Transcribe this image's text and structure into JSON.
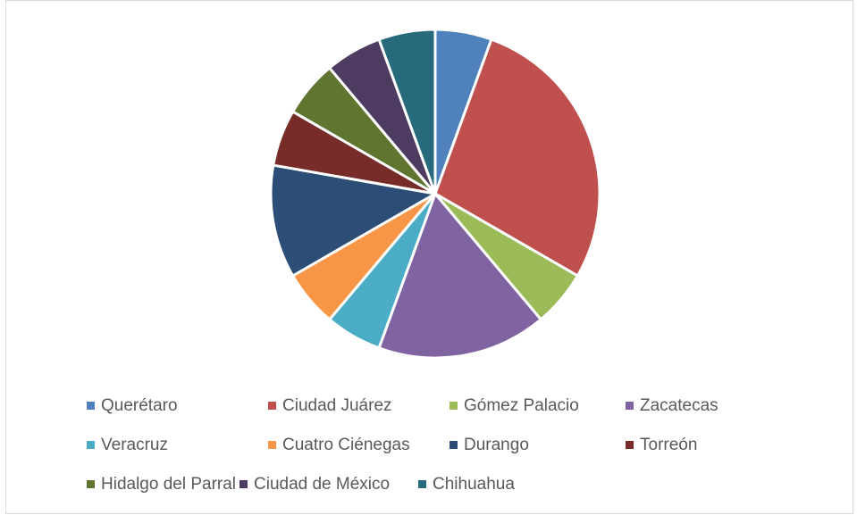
{
  "chart_data": {
    "type": "pie",
    "categories": [
      "Querétaro",
      "Ciudad Juárez",
      "Gómez Palacio",
      "Zacatecas",
      "Veracruz",
      "Cuatro Ciénegas",
      "Durango",
      "Torreón",
      "Hidalgo del Parral",
      "Ciudad de México",
      "Chihuahua"
    ],
    "values": [
      1,
      5,
      1,
      3,
      1,
      1,
      2,
      1,
      1,
      1,
      1
    ],
    "colors": [
      "#4f81bd",
      "#c0504d",
      "#9bbb59",
      "#8064a2",
      "#4bacc6",
      "#f79646",
      "#2c4d75",
      "#772c2a",
      "#5f7530",
      "#4d3b62",
      "#276a7c"
    ],
    "legend": "bottom"
  }
}
